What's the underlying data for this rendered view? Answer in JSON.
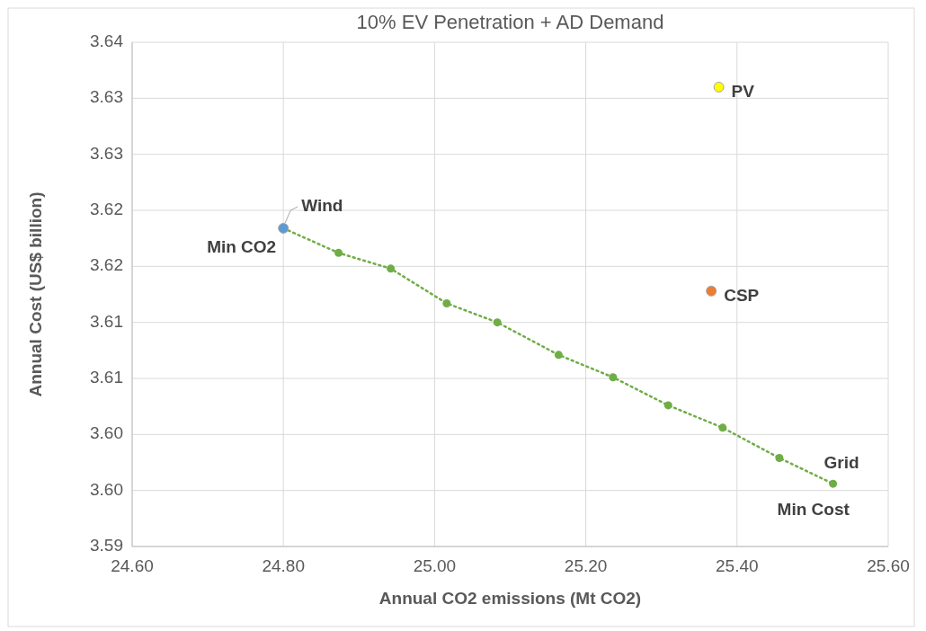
{
  "chart_data": {
    "type": "scatter",
    "title": "10% EV Penetration + AD Demand",
    "xlabel": "Annual CO2 emissions (Mt CO2)",
    "ylabel": "Annual Cost (US$ billion)",
    "xlim": [
      24.6,
      25.6
    ],
    "xticks": [
      {
        "value": 24.6,
        "label": "24.60"
      },
      {
        "value": 24.8,
        "label": "24.80"
      },
      {
        "value": 25.0,
        "label": "25.00"
      },
      {
        "value": 25.2,
        "label": "25.20"
      },
      {
        "value": 25.4,
        "label": "25.40"
      },
      {
        "value": 25.6,
        "label": "25.60"
      }
    ],
    "ylim": [
      3.595,
      3.64
    ],
    "yticks": [
      {
        "value": 3.595,
        "label": "3.59"
      },
      {
        "value": 3.6,
        "label": "3.60"
      },
      {
        "value": 3.605,
        "label": "3.60"
      },
      {
        "value": 3.61,
        "label": "3.61"
      },
      {
        "value": 3.615,
        "label": "3.61"
      },
      {
        "value": 3.62,
        "label": "3.62"
      },
      {
        "value": 3.625,
        "label": "3.62"
      },
      {
        "value": 3.63,
        "label": "3.63"
      },
      {
        "value": 3.635,
        "label": "3.63"
      },
      {
        "value": 3.64,
        "label": "3.64"
      }
    ],
    "grid": true,
    "marker": "circle",
    "series": [
      {
        "type": "line",
        "line_style": "dotted",
        "color": "#70ad47",
        "x": [
          24.8,
          24.873,
          24.942,
          25.016,
          25.083,
          25.164,
          25.236,
          25.309,
          25.381,
          25.456,
          25.527
        ],
        "values": [
          3.6234,
          3.6212,
          3.6198,
          3.6167,
          3.615,
          3.6121,
          3.6101,
          3.6076,
          3.6056,
          3.6029,
          3.6006
        ]
      },
      {
        "color": "#5b9bd5",
        "x": [
          24.8
        ],
        "values": [
          3.6234
        ]
      },
      {
        "color": "#ffff00",
        "x": [
          25.376
        ],
        "values": [
          3.636
        ]
      },
      {
        "color": "#ed7d31",
        "x": [
          25.366
        ],
        "values": [
          3.6178
        ]
      }
    ],
    "annotations": [
      {
        "text": "Wind",
        "x": 24.8,
        "y": 3.6234
      },
      {
        "text": "Min CO2",
        "x": 24.8,
        "y": 3.6234
      },
      {
        "text": "PV",
        "x": 25.376,
        "y": 3.636
      },
      {
        "text": "CSP",
        "x": 25.366,
        "y": 3.6178
      },
      {
        "text": "Grid",
        "x": 25.527,
        "y": 3.6006
      },
      {
        "text": "Min Cost",
        "x": 25.527,
        "y": 3.6006
      }
    ]
  }
}
